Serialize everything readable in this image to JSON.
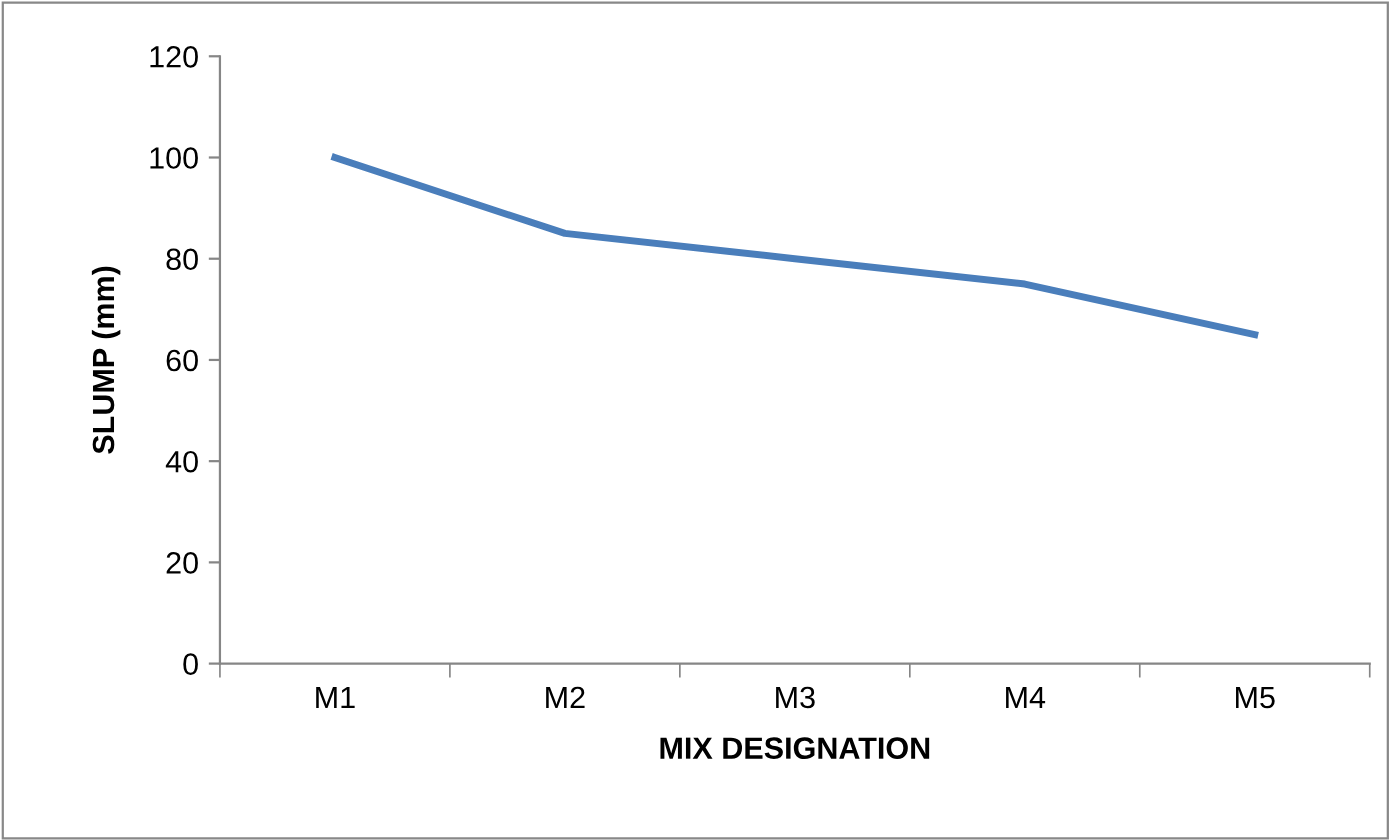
{
  "chart_data": {
    "type": "line",
    "xlabel": "MIX DESIGNATION",
    "ylabel": "SLUMP (mm)",
    "categories": [
      "M1",
      "M2",
      "M3",
      "M4",
      "M5"
    ],
    "series": [
      {
        "color": "#4a7ebb",
        "values": [
          100,
          85,
          80,
          75,
          65
        ]
      }
    ],
    "ylim": [
      0,
      120
    ],
    "yticks": [
      0,
      20,
      40,
      60,
      80,
      100,
      120
    ],
    "grid": false,
    "legend": false,
    "marker": "none",
    "line_style": "solid"
  }
}
